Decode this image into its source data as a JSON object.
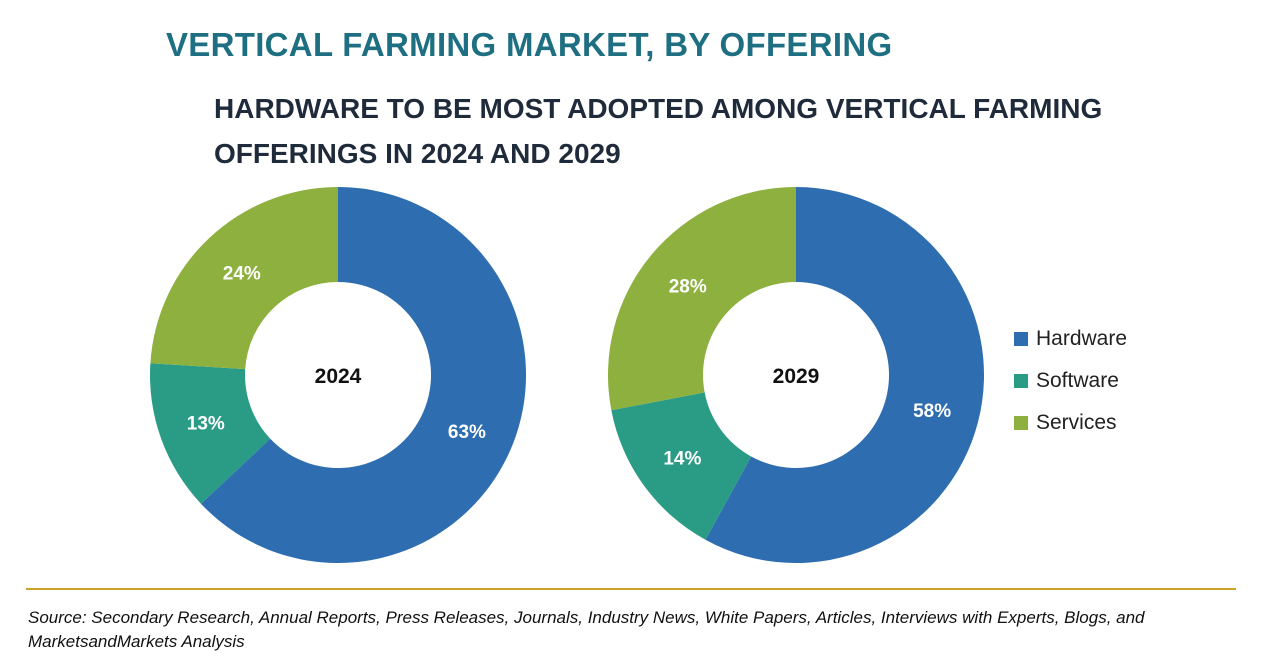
{
  "title": "VERTICAL FARMING MARKET, BY OFFERING",
  "subtitle": "HARDWARE TO BE MOST ADOPTED AMONG VERTICAL FARMING OFFERINGS IN 2024 AND 2029",
  "source": "Source: Secondary Research, Annual Reports, Press Releases, Journals, Industry News, White Papers, Articles, Interviews with Experts, Blogs, and MarketsandMarkets Analysis",
  "colors": {
    "hardware": "#2e6db0",
    "software": "#2a9c85",
    "services": "#8db03f",
    "title": "#1f6f82",
    "divider": "#c9a227"
  },
  "legend": [
    {
      "label": "Hardware",
      "color": "#2e6db0"
    },
    {
      "label": "Software",
      "color": "#2a9c85"
    },
    {
      "label": "Services",
      "color": "#8db03f"
    }
  ],
  "chart_data": [
    {
      "type": "pie",
      "style": "donut",
      "center_label": "2024",
      "categories": [
        "Hardware",
        "Software",
        "Services"
      ],
      "values": [
        63,
        13,
        24
      ],
      "labels": [
        "63%",
        "13%",
        "24%"
      ],
      "colors": [
        "#2e6db0",
        "#2a9c85",
        "#8db03f"
      ]
    },
    {
      "type": "pie",
      "style": "donut",
      "center_label": "2029",
      "categories": [
        "Hardware",
        "Software",
        "Services"
      ],
      "values": [
        58,
        14,
        28
      ],
      "labels": [
        "58%",
        "14%",
        "28%"
      ],
      "colors": [
        "#2e6db0",
        "#2a9c85",
        "#8db03f"
      ]
    }
  ]
}
